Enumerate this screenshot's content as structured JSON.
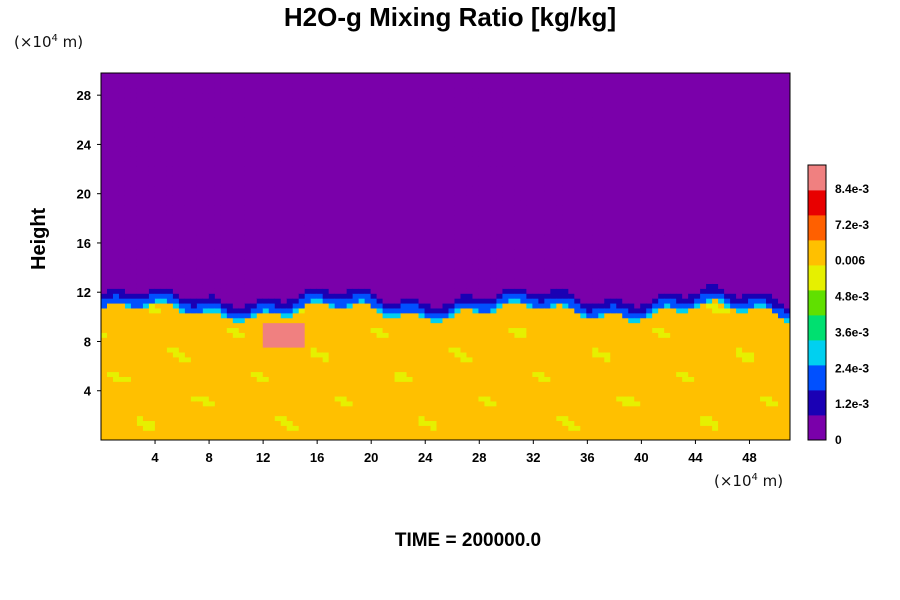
{
  "chart_data": {
    "type": "heatmap",
    "title": "H2O-g Mixing Ratio [kg/kg]",
    "ylabel": "Height",
    "xlabel": "",
    "x_unit_prefix": "(×10",
    "x_unit_exp": "4",
    "x_unit_suffix": " m)",
    "y_unit_prefix": "(×10",
    "y_unit_exp": "4",
    "y_unit_suffix": " m)",
    "xlim": [
      0,
      51
    ],
    "ylim": [
      0,
      29.8
    ],
    "x_ticks": [
      4,
      8,
      12,
      16,
      20,
      24,
      28,
      32,
      36,
      40,
      44,
      48
    ],
    "y_ticks": [
      4,
      8,
      12,
      16,
      20,
      24,
      28
    ],
    "colorbar": {
      "min": 0,
      "max": 0.0092,
      "tick_values": [
        0,
        0.0012,
        0.0024,
        0.0036,
        0.0048,
        0.006,
        0.0072,
        0.0084
      ],
      "tick_labels": [
        "0",
        "1.2e-3",
        "2.4e-3",
        "3.6e-3",
        "4.8e-3",
        "0.006",
        "7.2e-3",
        "8.4e-3"
      ],
      "colors": [
        "#7a00aa",
        "#1a00b4",
        "#0050ff",
        "#00d0f0",
        "#00e070",
        "#60e000",
        "#e6f000",
        "#ffc000",
        "#ff6000",
        "#e80000",
        "#f08080"
      ]
    },
    "field_description_values": {
      "upper_dry_value": 0,
      "lower_moist_value": 0.0062,
      "moist_layer_top_height_range": [
        10.5,
        11.6
      ],
      "dry_transition_band": [
        11,
        13.3
      ],
      "maximum_value_region": {
        "x": [
          12,
          15
        ],
        "y": [
          7.7,
          9.5
        ],
        "value": 0.0085
      }
    },
    "footer": "TIME = 200000.0"
  }
}
